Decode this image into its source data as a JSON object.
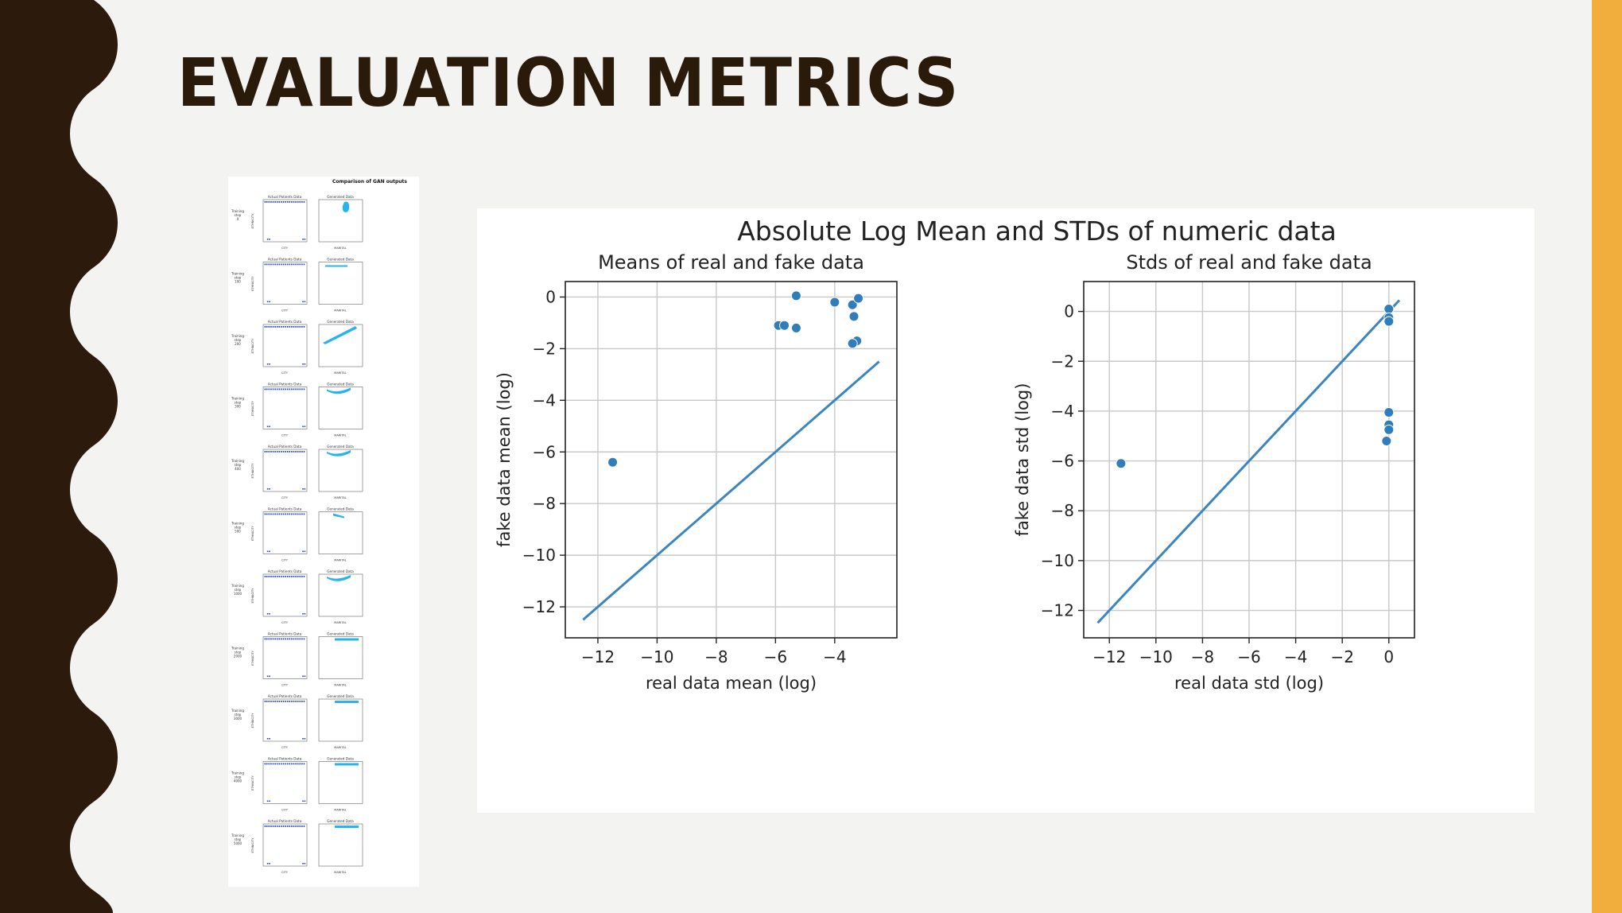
{
  "slide": {
    "title": "EVALUATION METRICS",
    "colors": {
      "title": "#2a1a0a",
      "left_band": "#2c1b0c",
      "right_band": "#f2ae3c",
      "background": "#f3f3f2"
    }
  },
  "gan_panel": {
    "title": "Comparison of GAN outputs",
    "left_subplot_title": "Actual Patients Data",
    "right_subplot_title": "Generated Data",
    "left_xlabel": "CITY",
    "right_xlabel": "MARITAL",
    "ylabel": "ETHNICITY",
    "row_labels": [
      "Training step 0",
      "Training step 100",
      "Training step 200",
      "Training step 300",
      "Training step 400",
      "Training step 500",
      "Training step 1000",
      "Training step 2000",
      "Training step 3000",
      "Training step 4000",
      "Training step 5000"
    ],
    "point_colors": {
      "actual": "#1f3fd6",
      "generated": "#27b4ee"
    }
  },
  "chart_data": [
    {
      "type": "scatter",
      "suptitle": "Absolute Log Mean and STDs of numeric data",
      "title": "Means of real and fake data",
      "xlabel": "real data mean (log)",
      "ylabel": "fake data mean (log)",
      "xlim": [
        -13.1,
        -1.9
      ],
      "ylim": [
        -13.2,
        0.6
      ],
      "xticks": [
        -12,
        -10,
        -8,
        -6,
        -4
      ],
      "yticks": [
        0,
        -2,
        -4,
        -6,
        -8,
        -10,
        -12
      ],
      "grid": true,
      "points": [
        {
          "x": -11.5,
          "y": -6.4
        },
        {
          "x": -5.9,
          "y": -1.1
        },
        {
          "x": -5.7,
          "y": -1.1
        },
        {
          "x": -5.3,
          "y": 0.05
        },
        {
          "x": -5.3,
          "y": -1.2
        },
        {
          "x": -4.0,
          "y": -0.2
        },
        {
          "x": -3.4,
          "y": -0.3
        },
        {
          "x": -3.2,
          "y": -0.05
        },
        {
          "x": -3.35,
          "y": -0.75
        },
        {
          "x": -3.25,
          "y": -1.7
        },
        {
          "x": -3.4,
          "y": -1.8
        }
      ],
      "reference_line": {
        "x": [
          -12.5,
          -2.5
        ],
        "y": [
          -12.5,
          -2.5
        ]
      },
      "color": "#2f7dbb"
    },
    {
      "type": "scatter",
      "title": "Stds of real and fake data",
      "xlabel": "real data std (log)",
      "ylabel": "fake data std (log)",
      "xlim": [
        -13.1,
        1.1
      ],
      "ylim": [
        -13.1,
        1.2
      ],
      "xticks": [
        -12,
        -10,
        -8,
        -6,
        -4,
        -2,
        0
      ],
      "yticks": [
        0,
        -2,
        -4,
        -6,
        -8,
        -10,
        -12
      ],
      "grid": true,
      "points": [
        {
          "x": -11.5,
          "y": -6.1
        },
        {
          "x": 0.0,
          "y": 0.1
        },
        {
          "x": 0.0,
          "y": -0.25
        },
        {
          "x": 0.0,
          "y": -0.4
        },
        {
          "x": 0.0,
          "y": -4.05
        },
        {
          "x": 0.0,
          "y": -4.55
        },
        {
          "x": 0.0,
          "y": -4.75
        },
        {
          "x": -0.1,
          "y": -5.2
        }
      ],
      "reference_line": {
        "x": [
          -12.5,
          0.45
        ],
        "y": [
          -12.5,
          0.45
        ]
      },
      "color": "#2f7dbb"
    }
  ]
}
